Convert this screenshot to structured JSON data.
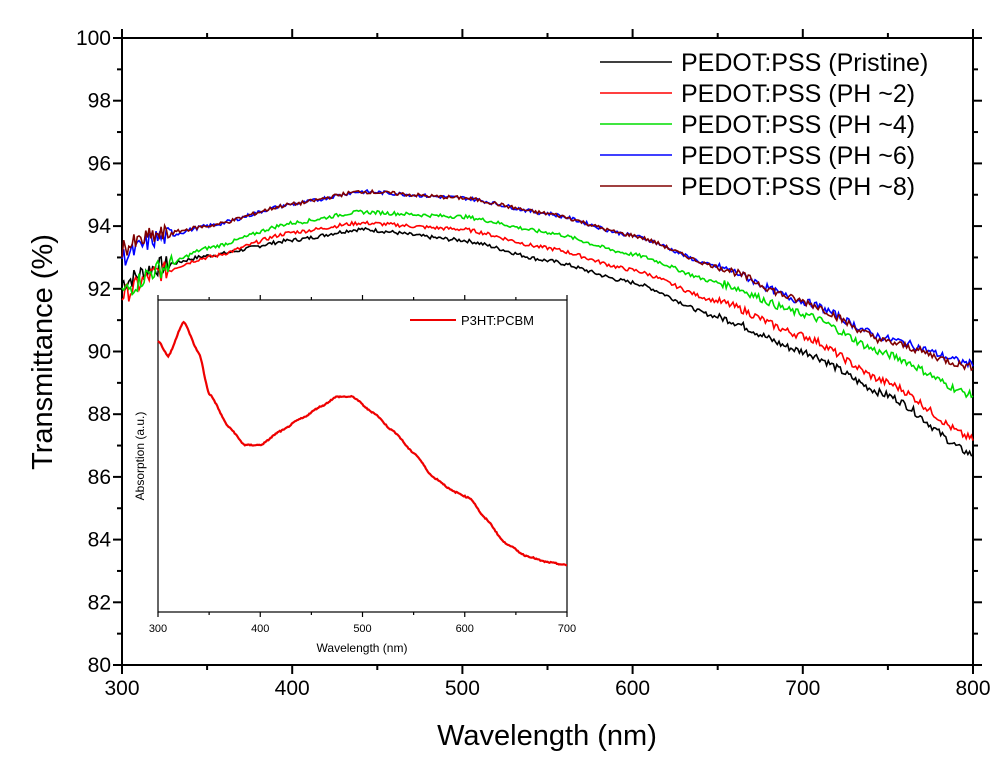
{
  "chart_data": [
    {
      "type": "line",
      "xlabel": "Wavelength (nm)",
      "ylabel": "Transmittance (%)",
      "xlim": [
        300,
        800
      ],
      "ylim": [
        80,
        100
      ],
      "xticks": [
        300,
        400,
        500,
        600,
        700,
        800
      ],
      "yticks": [
        80,
        82,
        84,
        86,
        88,
        90,
        92,
        94,
        96,
        98,
        100
      ],
      "grid": false,
      "legend_position": "top-right",
      "x": [
        300,
        320,
        350,
        400,
        440,
        500,
        550,
        600,
        650,
        700,
        750,
        800
      ],
      "series": [
        {
          "name": "PEDOT:PSS (Pristine)",
          "color": "#000000",
          "values": [
            92.2,
            92.7,
            93.05,
            93.55,
            93.9,
            93.55,
            92.9,
            92.2,
            91.1,
            90.0,
            88.6,
            86.7
          ]
        },
        {
          "name": "PEDOT:PSS (PH ~2)",
          "color": "#ff0000",
          "values": [
            91.8,
            92.5,
            93.0,
            93.8,
            94.1,
            93.9,
            93.3,
            92.6,
            91.6,
            90.5,
            89.0,
            87.2
          ]
        },
        {
          "name": "PEDOT:PSS (PH ~4)",
          "color": "#00dd00",
          "values": [
            91.9,
            92.6,
            93.3,
            94.1,
            94.45,
            94.3,
            93.8,
            93.1,
            92.2,
            91.2,
            89.9,
            88.6
          ]
        },
        {
          "name": "PEDOT:PSS (PH ~6)",
          "color": "#0000ff",
          "values": [
            93.0,
            93.6,
            94.0,
            94.7,
            95.1,
            94.9,
            94.4,
            93.7,
            92.7,
            91.6,
            90.4,
            89.6
          ]
        },
        {
          "name": "PEDOT:PSS (PH ~8)",
          "color": "#800000",
          "values": [
            93.3,
            93.7,
            94.0,
            94.7,
            95.1,
            94.9,
            94.4,
            93.7,
            92.7,
            91.6,
            90.3,
            89.5
          ]
        }
      ]
    },
    {
      "type": "line",
      "xlabel": "Wavelength (nm)",
      "ylabel": "Absorption (a.u.)",
      "xlim": [
        300,
        700
      ],
      "xticks": [
        300,
        400,
        500,
        600,
        700
      ],
      "ylim": [
        0,
        1
      ],
      "legend_position": "top-right",
      "x": [
        300,
        310,
        325,
        340,
        350,
        370,
        385,
        400,
        420,
        440,
        460,
        475,
        490,
        510,
        530,
        550,
        570,
        590,
        605,
        620,
        640,
        660,
        680,
        700
      ],
      "series": [
        {
          "name": "P3HT:PCBM",
          "color": "#ee0000",
          "values": [
            0.87,
            0.82,
            0.93,
            0.83,
            0.7,
            0.59,
            0.535,
            0.535,
            0.58,
            0.62,
            0.66,
            0.69,
            0.69,
            0.64,
            0.58,
            0.51,
            0.43,
            0.385,
            0.365,
            0.3,
            0.22,
            0.18,
            0.16,
            0.15
          ]
        }
      ]
    }
  ]
}
